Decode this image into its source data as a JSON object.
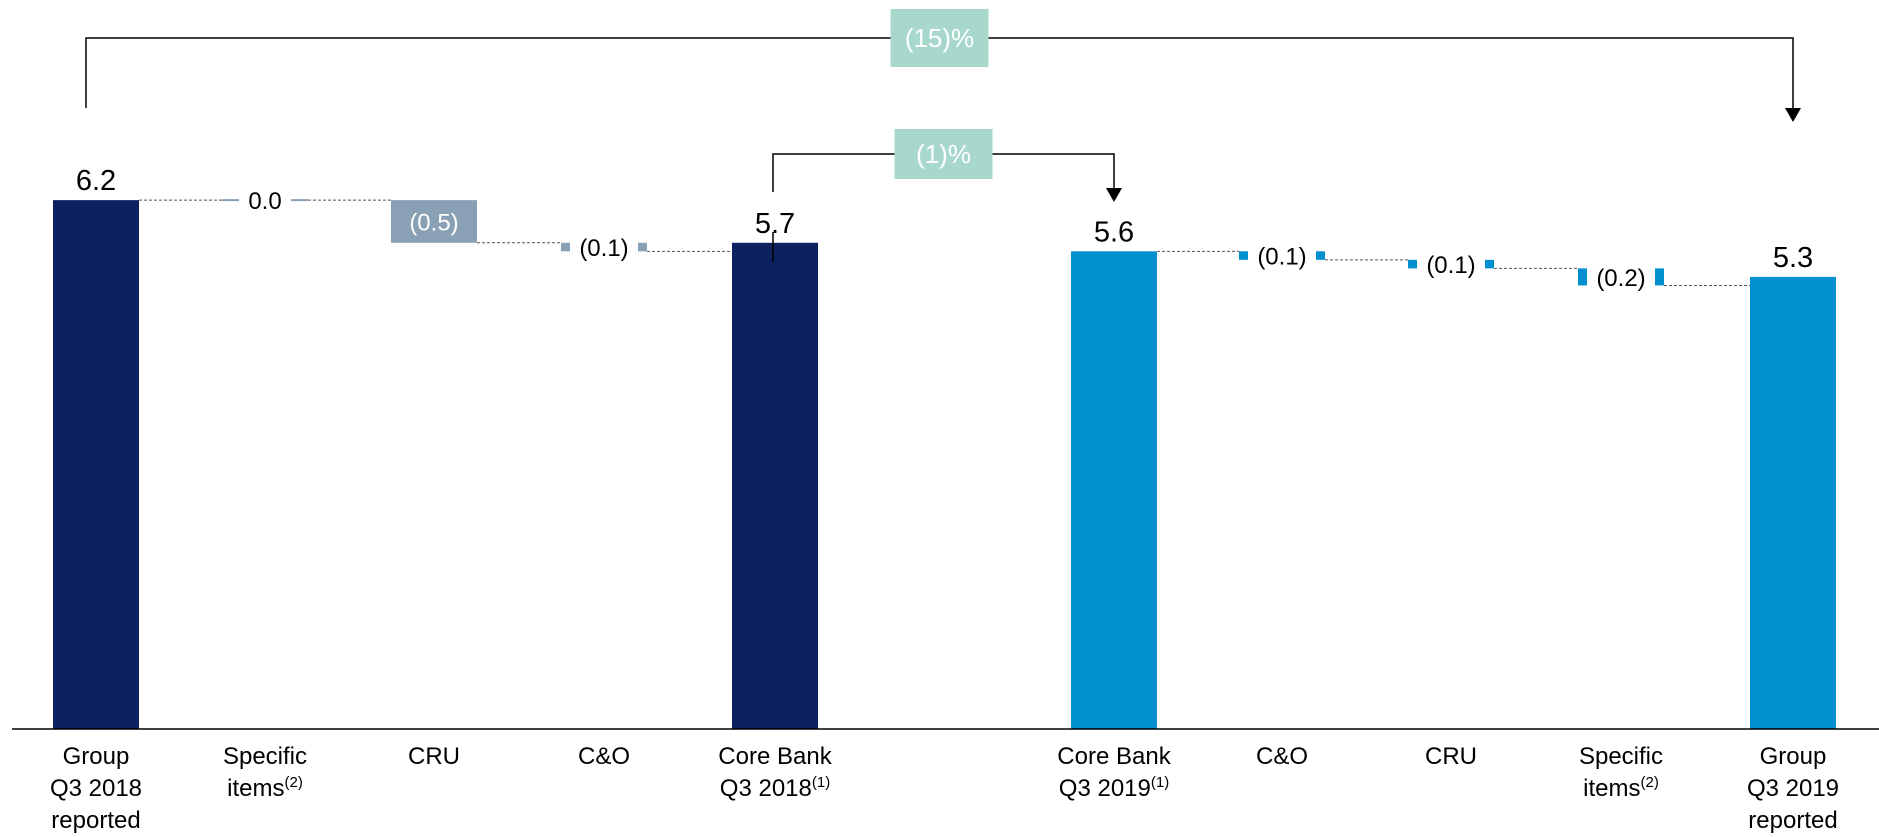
{
  "chart_data": {
    "type": "waterfall",
    "title": "",
    "xlabel": "",
    "ylabel": "",
    "ylim": [
      0,
      6.2
    ],
    "grid": false,
    "legend": "none",
    "colors": {
      "total_2018": "#0c2260",
      "total_2019": "#0090d0",
      "delta_2018": "#8aa0b5",
      "delta_2019": "#0090d0",
      "comparison_box": "#a8d8cc",
      "connector": "#555555"
    },
    "categories": [
      {
        "line1": "Group",
        "line2": "Q3 2018",
        "line3": "reported",
        "sup": ""
      },
      {
        "line1": "Specific",
        "line2": "items",
        "line3": "",
        "sup": "(2)"
      },
      {
        "line1": "CRU",
        "line2": "",
        "line3": "",
        "sup": ""
      },
      {
        "line1": "C&O",
        "line2": "",
        "line3": "",
        "sup": ""
      },
      {
        "line1": "Core Bank",
        "line2": "Q3 2018",
        "line3": "",
        "sup": "(1)"
      },
      {
        "line1": "Core Bank",
        "line2": "Q3 2019",
        "line3": "",
        "sup": "(1)"
      },
      {
        "line1": "C&O",
        "line2": "",
        "line3": "",
        "sup": ""
      },
      {
        "line1": "CRU",
        "line2": "",
        "line3": "",
        "sup": ""
      },
      {
        "line1": "Specific",
        "line2": "items",
        "line3": "",
        "sup": "(2)"
      },
      {
        "line1": "Group",
        "line2": "Q3 2019",
        "line3": "reported",
        "sup": ""
      }
    ],
    "bars": [
      {
        "kind": "total",
        "value": 6.2,
        "label": "6.2",
        "period": "2018"
      },
      {
        "kind": "delta",
        "value": 0.0,
        "label": "0.0",
        "period": "2018"
      },
      {
        "kind": "delta",
        "value": -0.5,
        "label": "(0.5)",
        "period": "2018"
      },
      {
        "kind": "delta",
        "value": -0.1,
        "label": "(0.1)",
        "period": "2018"
      },
      {
        "kind": "total",
        "value": 5.7,
        "label": "5.7",
        "period": "2018"
      },
      {
        "kind": "total",
        "value": 5.6,
        "label": "5.6",
        "period": "2019"
      },
      {
        "kind": "delta",
        "value": -0.1,
        "label": "(0.1)",
        "period": "2019"
      },
      {
        "kind": "delta",
        "value": -0.1,
        "label": "(0.1)",
        "period": "2019"
      },
      {
        "kind": "delta",
        "value": -0.2,
        "label": "(0.2)",
        "period": "2019"
      },
      {
        "kind": "total",
        "value": 5.3,
        "label": "5.3",
        "period": "2019"
      }
    ],
    "annotations": [
      {
        "from": "Group Q3 2018 reported",
        "to": "Group Q3 2019 reported",
        "text": "(15)%"
      },
      {
        "from": "Core Bank Q3 2018",
        "to": "Core Bank Q3 2019",
        "text": "(1)%"
      }
    ]
  }
}
